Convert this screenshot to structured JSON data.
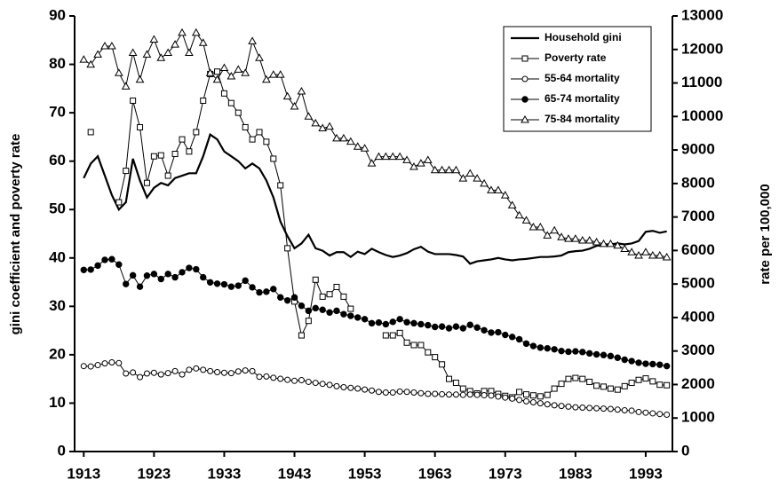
{
  "chart_data": {
    "type": "line",
    "x": [
      1913,
      1914,
      1915,
      1916,
      1917,
      1918,
      1919,
      1920,
      1921,
      1922,
      1923,
      1924,
      1925,
      1926,
      1927,
      1928,
      1929,
      1930,
      1931,
      1932,
      1933,
      1934,
      1935,
      1936,
      1937,
      1938,
      1939,
      1940,
      1941,
      1942,
      1943,
      1944,
      1945,
      1946,
      1947,
      1948,
      1949,
      1950,
      1951,
      1952,
      1953,
      1954,
      1955,
      1956,
      1957,
      1958,
      1959,
      1960,
      1961,
      1962,
      1963,
      1964,
      1965,
      1966,
      1967,
      1968,
      1969,
      1970,
      1971,
      1972,
      1973,
      1974,
      1975,
      1976,
      1977,
      1978,
      1979,
      1980,
      1981,
      1982,
      1983,
      1984,
      1985,
      1986,
      1987,
      1988,
      1989,
      1990,
      1991,
      1992,
      1993,
      1994,
      1995,
      1996
    ],
    "xlim": [
      1911.7,
      1996.8
    ],
    "xticks": [
      1913,
      1923,
      1933,
      1943,
      1953,
      1963,
      1973,
      1983,
      1993
    ],
    "ylim": [
      0,
      90
    ],
    "yticks": [
      0,
      10,
      20,
      30,
      40,
      50,
      60,
      70,
      80,
      90
    ],
    "y2lim": [
      0,
      13000
    ],
    "y2ticks": [
      0,
      1000,
      2000,
      3000,
      4000,
      5000,
      6000,
      7000,
      8000,
      9000,
      10000,
      11000,
      12000,
      13000
    ],
    "ylabel": "gini coefficient and poverty rate",
    "y2label": "rate per 100,000",
    "legend": "upper right",
    "series": [
      {
        "name": "Household gini",
        "color": "#000000",
        "marker": "none",
        "values": [
          56.5,
          59.5,
          61,
          57,
          53,
          50,
          51.5,
          60.5,
          56,
          52.5,
          54.5,
          55.5,
          55,
          56.5,
          57,
          57.5,
          57.5,
          61,
          65.5,
          64.5,
          62,
          61,
          60,
          58.5,
          59.5,
          58.5,
          56,
          52.5,
          47.5,
          44.5,
          42,
          43,
          44.8,
          42,
          41.5,
          40.5,
          41.2,
          41.2,
          40.2,
          41.3,
          40.8,
          41.9,
          41.2,
          40.6,
          40.2,
          40.5,
          41,
          41.8,
          42.3,
          41.3,
          40.8,
          40.8,
          40.8,
          40.6,
          40.3,
          38.8,
          39.3,
          39.5,
          39.7,
          40,
          39.7,
          39.5,
          39.7,
          39.8,
          40,
          40.2,
          40.2,
          40.3,
          40.5,
          41.2,
          41.4,
          41.5,
          41.9,
          42.5,
          42.7,
          42.8,
          43,
          42.8,
          43,
          43.5,
          45.4,
          45.6,
          45.2,
          45.5
        ]
      },
      {
        "name": "Poverty rate",
        "color": "#000000",
        "marker": "square",
        "values": [
          null,
          66,
          null,
          null,
          null,
          51.5,
          58,
          72.5,
          67,
          55.5,
          61,
          61.2,
          57,
          61.5,
          64.5,
          62,
          66,
          72.5,
          78,
          78.5,
          74,
          72,
          70,
          67,
          64.5,
          66,
          64,
          60.5,
          55,
          42,
          31,
          24,
          27,
          35.5,
          32,
          32.5,
          34,
          32,
          29.5,
          null,
          null,
          null,
          null,
          24,
          24,
          24.5,
          22.5,
          22,
          22,
          20.5,
          19.5,
          18,
          15,
          14.2,
          13,
          12.5,
          12,
          12.5,
          12.5,
          11.9,
          11.5,
          11.2,
          12.3,
          11.8,
          11.6,
          11.4,
          11.7,
          13,
          14,
          15,
          15.2,
          15,
          14.4,
          13.6,
          13.4,
          13,
          12.8,
          13.5,
          14.2,
          14.8,
          15.1,
          14.5,
          13.8,
          13.7
        ]
      },
      {
        "name": "55-64 mortality",
        "color": "#000000",
        "marker": "circle",
        "axis": "y2",
        "values": [
          2550,
          2540,
          2580,
          2630,
          2660,
          2640,
          2330,
          2360,
          2220,
          2330,
          2350,
          2300,
          2340,
          2400,
          2300,
          2440,
          2480,
          2440,
          2400,
          2370,
          2350,
          2340,
          2390,
          2420,
          2400,
          2230,
          2240,
          2200,
          2170,
          2140,
          2110,
          2130,
          2080,
          2050,
          2020,
          1990,
          1950,
          1920,
          1900,
          1880,
          1850,
          1820,
          1780,
          1760,
          1760,
          1790,
          1780,
          1760,
          1740,
          1720,
          1720,
          1710,
          1700,
          1700,
          1690,
          1700,
          1690,
          1680,
          1670,
          1640,
          1610,
          1580,
          1540,
          1500,
          1470,
          1440,
          1410,
          1380,
          1360,
          1340,
          1320,
          1310,
          1300,
          1290,
          1280,
          1270,
          1250,
          1230,
          1220,
          1180,
          1160,
          1140,
          1120,
          1100
        ]
      },
      {
        "name": "65-74 mortality",
        "color": "#000000",
        "marker": "circle-filled",
        "axis": "y2",
        "values": [
          5420,
          5430,
          5550,
          5720,
          5740,
          5580,
          5000,
          5260,
          4920,
          5250,
          5300,
          5150,
          5300,
          5200,
          5350,
          5480,
          5440,
          5200,
          5050,
          5010,
          4990,
          4920,
          4950,
          5100,
          4900,
          4750,
          4770,
          4850,
          4600,
          4510,
          4600,
          4350,
          4200,
          4280,
          4230,
          4150,
          4200,
          4100,
          4050,
          4000,
          3950,
          3830,
          3850,
          3800,
          3870,
          3950,
          3860,
          3830,
          3800,
          3770,
          3720,
          3730,
          3680,
          3730,
          3680,
          3780,
          3700,
          3620,
          3550,
          3560,
          3480,
          3420,
          3350,
          3220,
          3150,
          3100,
          3080,
          3050,
          3000,
          2980,
          2990,
          2970,
          2930,
          2900,
          2880,
          2850,
          2800,
          2740,
          2700,
          2650,
          2620,
          2610,
          2590,
          2550
        ]
      },
      {
        "name": "75-84 mortality",
        "color": "#000000",
        "marker": "triangle",
        "axis": "y2",
        "values": [
          11700,
          11550,
          11850,
          12100,
          12100,
          11300,
          10900,
          11900,
          11100,
          11850,
          12300,
          11750,
          11900,
          12150,
          12500,
          11900,
          12500,
          12200,
          11300,
          11100,
          11450,
          11200,
          11400,
          11300,
          12250,
          11750,
          11100,
          11250,
          11250,
          10600,
          10300,
          10750,
          10000,
          9800,
          9650,
          9700,
          9350,
          9350,
          9250,
          9100,
          9050,
          8600,
          8800,
          8800,
          8800,
          8800,
          8700,
          8500,
          8600,
          8700,
          8400,
          8400,
          8400,
          8400,
          8150,
          8300,
          8150,
          8000,
          7800,
          7800,
          7650,
          7350,
          7050,
          6900,
          6700,
          6700,
          6450,
          6600,
          6400,
          6350,
          6350,
          6300,
          6300,
          6250,
          6200,
          6200,
          6150,
          6050,
          5950,
          5850,
          5950,
          5850,
          5850,
          5800
        ]
      }
    ]
  }
}
